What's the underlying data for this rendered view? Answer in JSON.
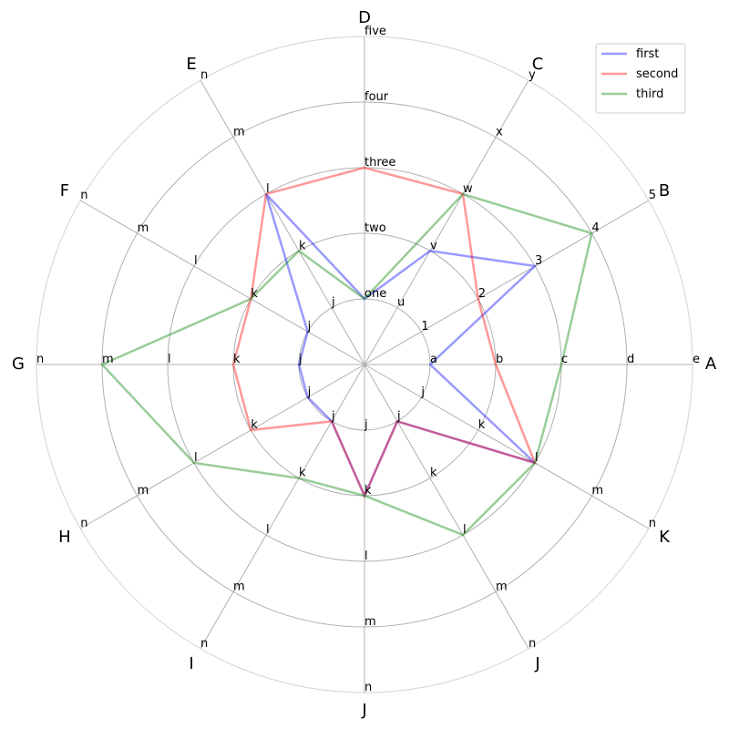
{
  "chart_data": {
    "type": "radar",
    "axes": [
      "A",
      "B",
      "C",
      "D",
      "E",
      "F",
      "G",
      "H",
      "I",
      "J",
      "J",
      "K"
    ],
    "ring_count": 5,
    "axis_ticks": [
      [
        "a",
        "b",
        "c",
        "d",
        "e"
      ],
      [
        "1",
        "2",
        "3",
        "4",
        "5"
      ],
      [
        "u",
        "v",
        "w",
        "x",
        "y"
      ],
      [
        "one",
        "two",
        "three",
        "four",
        "five"
      ],
      [
        "j",
        "k",
        "l",
        "m",
        "n"
      ],
      [
        "j",
        "k",
        "l",
        "m",
        "n"
      ],
      [
        "j",
        "k",
        "l",
        "m",
        "n"
      ],
      [
        "j",
        "k",
        "l",
        "m",
        "n"
      ],
      [
        "j",
        "k",
        "l",
        "m",
        "n"
      ],
      [
        "j",
        "k",
        "l",
        "m",
        "n"
      ],
      [
        "j",
        "k",
        "l",
        "m",
        "n"
      ],
      [
        "j",
        "k",
        "l",
        "m",
        "n"
      ]
    ],
    "series": [
      {
        "name": "first",
        "color": "#0000ff",
        "values": [
          1,
          3,
          2,
          1,
          3,
          1,
          1,
          1,
          1,
          2,
          1,
          3
        ]
      },
      {
        "name": "second",
        "color": "#ff0000",
        "values": [
          2,
          2,
          3,
          3,
          3,
          2,
          2,
          2,
          1,
          2,
          1,
          3
        ]
      },
      {
        "name": "third",
        "color": "#008000",
        "values": [
          3,
          4,
          3,
          1,
          2,
          2,
          4,
          3,
          2,
          2,
          3,
          3
        ]
      }
    ],
    "grid": true,
    "legend_position": "top-right"
  }
}
